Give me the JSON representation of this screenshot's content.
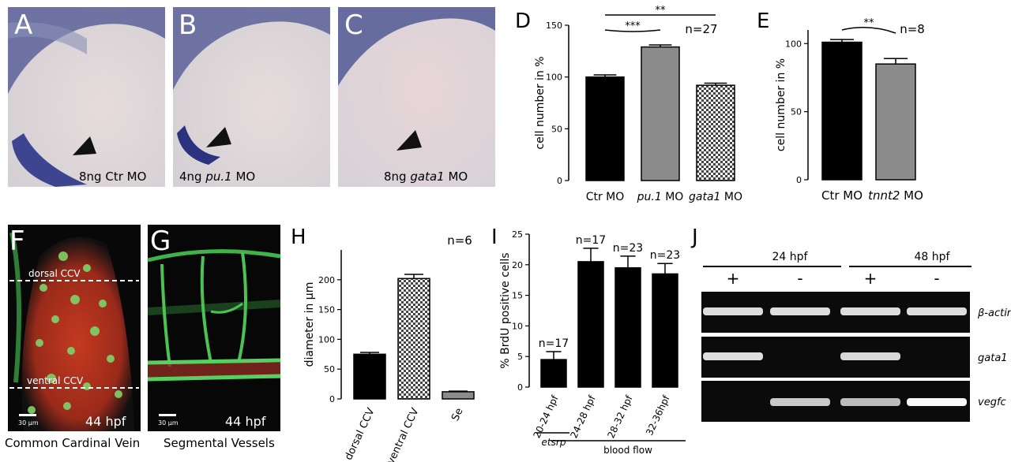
{
  "panels": {
    "A": {
      "letter": "A",
      "caption": "8ng Ctr MO"
    },
    "B": {
      "letter": "B",
      "caption_prefix": "4ng ",
      "caption_italic": "pu.1",
      "caption_suffix": " MO"
    },
    "C": {
      "letter": "C",
      "caption_prefix": "8ng ",
      "caption_italic": "gata1",
      "caption_suffix": " MO"
    },
    "F": {
      "letter": "F",
      "label_dorsal": "dorsal CCV",
      "label_ventral": "ventral CCV",
      "scale": "30 µm",
      "stage": "44 hpf",
      "caption": "Common Cardinal Vein"
    },
    "G": {
      "letter": "G",
      "scale": "30 µm",
      "stage": "44 hpf",
      "caption": "Segmental Vessels"
    },
    "J": {
      "letter": "J",
      "groups": [
        "24 hpf",
        "48 hpf"
      ],
      "lanes": [
        "+",
        "-",
        "+",
        "-"
      ],
      "genes": [
        "β-actin",
        "gata1",
        "vegfc"
      ]
    }
  },
  "chart_data": [
    {
      "panel": "D",
      "type": "bar",
      "categories": [
        "Ctr MO",
        "pu.1 MO",
        "gata1 MO"
      ],
      "values": [
        100,
        129,
        92
      ],
      "errors": [
        2,
        2,
        2
      ],
      "ylabel": "cell number in %",
      "ylim": [
        0,
        150
      ],
      "yticks": [
        "0",
        "50",
        "100",
        "150"
      ],
      "n_label": "n=27",
      "significance": [
        "***",
        "**"
      ],
      "colors": [
        "#000000",
        "#8c8c8c",
        "checker"
      ]
    },
    {
      "panel": "E",
      "type": "bar",
      "categories": [
        "Ctr MO",
        "tnnt2 MO"
      ],
      "values": [
        101,
        85
      ],
      "errors": [
        2,
        4
      ],
      "ylabel": "cell number in %",
      "ylim": [
        0,
        110
      ],
      "yticks": [
        "0",
        "50",
        "100"
      ],
      "n_label": "n=8",
      "significance": [
        "**"
      ],
      "colors": [
        "#000000",
        "#8c8c8c"
      ]
    },
    {
      "panel": "H",
      "type": "bar",
      "categories": [
        "dorsal CCV",
        "ventral CCV",
        "Se"
      ],
      "values": [
        75,
        202,
        12
      ],
      "errors": [
        3,
        7,
        1
      ],
      "ylabel": "diameter in µm",
      "ylim": [
        0,
        250
      ],
      "yticks": [
        "0",
        "50",
        "100",
        "150",
        "200"
      ],
      "n_label": "n=6",
      "colors": [
        "#000000",
        "checker",
        "#8c8c8c"
      ]
    },
    {
      "panel": "I",
      "type": "bar",
      "categories": [
        "20-24 hpf",
        "24-28 hpf",
        "28-32 hpf",
        "32-36hpf"
      ],
      "values": [
        4.5,
        20.5,
        19.5,
        18.5
      ],
      "errors": [
        1.3,
        2.2,
        1.9,
        1.7
      ],
      "ylabel": "% BrdU positive cells",
      "ylim": [
        0,
        25
      ],
      "yticks": [
        "0",
        "5",
        "10",
        "15",
        "20",
        "25"
      ],
      "bar_labels": [
        "n=17",
        "n=17",
        "n=23",
        "n=23"
      ],
      "group_labels": [
        "etsrp",
        "blood flow"
      ],
      "colors": [
        "#000000",
        "#000000",
        "#000000",
        "#000000"
      ]
    }
  ]
}
